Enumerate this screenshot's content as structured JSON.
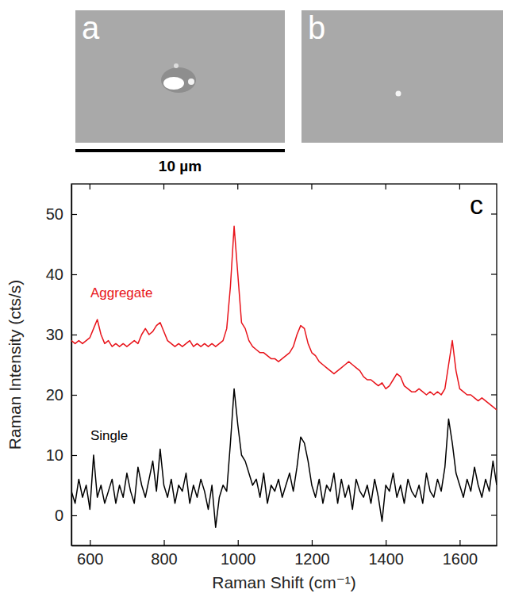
{
  "images": [
    {
      "label": "a"
    },
    {
      "label": "b"
    }
  ],
  "scale_bar": {
    "label": "10 µm"
  },
  "chart_data": {
    "type": "line",
    "panel_label": "c",
    "x_label": "Raman Shift (cm⁻¹)",
    "y_label": "Raman Intensity (cts/s)",
    "xlim": [
      550,
      1700
    ],
    "ylim": [
      -5,
      55
    ],
    "xticks": [
      600,
      800,
      1000,
      1200,
      1400,
      1600
    ],
    "yticks": [
      0,
      10,
      20,
      30,
      40,
      50
    ],
    "x": [
      550,
      560,
      570,
      580,
      590,
      600,
      610,
      620,
      630,
      640,
      650,
      660,
      670,
      680,
      690,
      700,
      710,
      720,
      730,
      740,
      750,
      760,
      770,
      780,
      790,
      800,
      810,
      820,
      830,
      840,
      850,
      860,
      870,
      880,
      890,
      900,
      910,
      920,
      930,
      940,
      950,
      960,
      970,
      980,
      990,
      1000,
      1010,
      1020,
      1030,
      1040,
      1050,
      1060,
      1070,
      1080,
      1090,
      1100,
      1110,
      1120,
      1130,
      1140,
      1150,
      1160,
      1170,
      1180,
      1190,
      1200,
      1210,
      1220,
      1230,
      1240,
      1250,
      1260,
      1270,
      1280,
      1290,
      1300,
      1310,
      1320,
      1330,
      1340,
      1350,
      1360,
      1370,
      1380,
      1390,
      1400,
      1410,
      1420,
      1430,
      1440,
      1450,
      1460,
      1470,
      1480,
      1490,
      1500,
      1510,
      1520,
      1530,
      1540,
      1550,
      1560,
      1570,
      1580,
      1590,
      1600,
      1610,
      1620,
      1630,
      1640,
      1650,
      1660,
      1670,
      1680,
      1690,
      1700
    ],
    "series": [
      {
        "name": "Aggregate",
        "color": "#e8141b",
        "values": [
          29,
          28.5,
          29,
          28.5,
          29,
          29.5,
          31,
          32.5,
          30,
          28.5,
          29,
          28,
          28.5,
          28,
          28.5,
          28,
          28.5,
          29,
          28.5,
          30,
          31,
          30,
          30.5,
          31.5,
          32,
          30.5,
          29,
          28.5,
          28,
          28.5,
          28,
          28.5,
          29,
          28,
          28.5,
          28,
          28.5,
          28,
          28.5,
          28,
          28.5,
          29,
          31,
          38,
          48,
          40,
          32,
          31,
          29,
          28,
          27.5,
          27,
          27,
          26.5,
          26,
          26,
          25.5,
          26,
          26.5,
          27,
          28,
          30,
          31.5,
          31,
          28.5,
          27,
          26.5,
          25.5,
          25,
          24.5,
          24,
          23.5,
          24,
          24.5,
          25,
          25.5,
          25,
          24.5,
          24,
          23,
          22.5,
          22.5,
          22,
          21.5,
          22,
          21,
          21.5,
          22.5,
          23.5,
          23,
          21.5,
          21,
          20.5,
          20.5,
          21,
          20.5,
          20,
          20.5,
          20,
          20.5,
          20,
          21,
          25,
          29,
          24,
          21,
          20.5,
          20,
          20,
          19.5,
          19,
          19.5,
          19,
          18.5,
          18,
          17.5
        ]
      },
      {
        "name": "Single",
        "color": "#000000",
        "values": [
          4,
          2,
          6,
          3,
          5,
          1,
          10,
          3,
          5,
          2,
          4,
          6,
          2,
          5,
          3,
          7,
          4,
          2,
          8,
          5,
          3,
          6,
          9,
          4,
          11,
          5,
          3,
          6,
          2,
          5,
          4,
          7,
          2,
          5,
          3,
          6,
          4,
          1,
          5,
          -2,
          3,
          5,
          4,
          12,
          21,
          15,
          10,
          9,
          7,
          5,
          6,
          3,
          7,
          2,
          5,
          4,
          6,
          3,
          5,
          7,
          4,
          8,
          13,
          12,
          9,
          5,
          3,
          6,
          2,
          5,
          4,
          7,
          2,
          6,
          3,
          5,
          1,
          6,
          4,
          3,
          5,
          2,
          6,
          3,
          -1,
          5,
          4,
          7,
          3,
          5,
          2,
          6,
          4,
          3,
          5,
          2,
          7,
          4,
          3,
          6,
          4,
          8,
          16,
          12,
          7,
          5,
          3,
          6,
          4,
          8,
          5,
          3,
          6,
          4,
          9,
          5
        ]
      }
    ]
  }
}
